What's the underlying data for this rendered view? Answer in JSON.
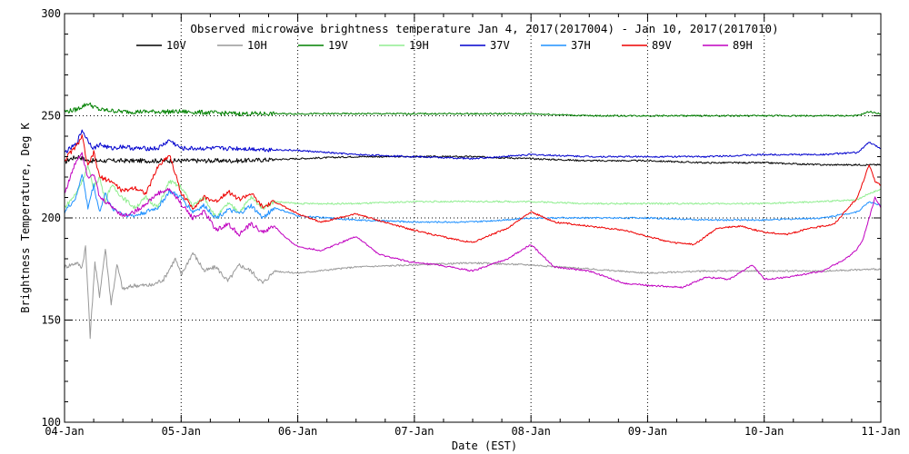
{
  "chart_data": {
    "type": "line",
    "title": "Observed microwave brightness temperature Jan  4, 2017(2017004) - Jan 10, 2017(2017010)",
    "xlabel": "Date (EST)",
    "ylabel": "Brightness Temperature, Deg K",
    "ylim": [
      100,
      300
    ],
    "xlim": [
      0,
      7
    ],
    "grid": true,
    "yticks": [
      100,
      150,
      200,
      250,
      300
    ],
    "xtick_labels": [
      "04-Jan",
      "05-Jan",
      "06-Jan",
      "07-Jan",
      "08-Jan",
      "09-Jan",
      "10-Jan",
      "11-Jan"
    ],
    "legend_position": "top",
    "series": [
      {
        "name": "10V",
        "color": "#000000",
        "x": [
          0,
          0.05,
          0.12,
          0.2,
          0.3,
          0.5,
          0.8,
          1.0,
          1.5,
          2.0,
          2.5,
          3.0,
          3.5,
          4.0,
          4.5,
          5.0,
          5.5,
          6.0,
          6.5,
          6.9,
          7.0
        ],
        "y": [
          227,
          229,
          230,
          228,
          228,
          228,
          228,
          228,
          228,
          229,
          230,
          230,
          230,
          229,
          228,
          228,
          227,
          227,
          226,
          226,
          226
        ]
      },
      {
        "name": "10H",
        "color": "#999999",
        "x": [
          0,
          0.05,
          0.1,
          0.15,
          0.18,
          0.22,
          0.26,
          0.3,
          0.35,
          0.4,
          0.45,
          0.5,
          0.6,
          0.75,
          0.85,
          0.95,
          1.0,
          1.1,
          1.2,
          1.3,
          1.4,
          1.5,
          1.6,
          1.7,
          1.8,
          2.0,
          2.5,
          3.0,
          3.5,
          4.0,
          4.5,
          5.0,
          5.5,
          6.0,
          6.5,
          7.0
        ],
        "y": [
          176,
          177,
          178,
          176,
          186,
          142,
          178,
          162,
          185,
          158,
          177,
          165,
          167,
          167,
          170,
          180,
          172,
          183,
          174,
          176,
          169,
          177,
          174,
          168,
          174,
          173,
          176,
          177,
          178,
          177,
          175,
          173,
          174,
          174,
          174,
          175
        ]
      },
      {
        "name": "19V",
        "color": "#008000",
        "x": [
          0,
          0.1,
          0.2,
          0.3,
          0.5,
          1.0,
          1.5,
          2.0,
          2.5,
          3.0,
          3.5,
          4.0,
          4.5,
          5.0,
          5.5,
          6.0,
          6.5,
          6.8,
          6.9,
          7.0
        ],
        "y": [
          252,
          253,
          256,
          253,
          252,
          252,
          251,
          251,
          251,
          251,
          251,
          251,
          250,
          250,
          250,
          250,
          250,
          250,
          252,
          251
        ]
      },
      {
        "name": "19H",
        "color": "#90ee90",
        "x": [
          0,
          0.1,
          0.15,
          0.2,
          0.25,
          0.3,
          0.35,
          0.4,
          0.5,
          0.6,
          0.7,
          0.8,
          0.9,
          1.0,
          1.1,
          1.2,
          1.3,
          1.4,
          1.5,
          1.6,
          1.7,
          1.8,
          2.0,
          2.5,
          3.0,
          3.5,
          4.0,
          4.5,
          5.0,
          5.5,
          6.0,
          6.5,
          6.8,
          6.9,
          7.0
        ],
        "y": [
          205,
          212,
          218,
          225,
          215,
          220,
          208,
          216,
          210,
          205,
          210,
          205,
          218,
          215,
          206,
          210,
          200,
          207,
          203,
          210,
          205,
          208,
          207,
          207,
          208,
          208,
          208,
          207,
          207,
          207,
          207,
          208,
          209,
          212,
          214
        ]
      },
      {
        "name": "37V",
        "color": "#0000cd",
        "x": [
          0,
          0.1,
          0.15,
          0.2,
          0.25,
          0.3,
          0.4,
          0.5,
          0.6,
          0.8,
          0.9,
          1.0,
          1.2,
          1.5,
          2.0,
          2.5,
          3.0,
          3.5,
          4.0,
          4.5,
          5.0,
          5.5,
          6.0,
          6.5,
          6.8,
          6.9,
          7.0
        ],
        "y": [
          232,
          236,
          243,
          238,
          234,
          236,
          234,
          235,
          234,
          234,
          238,
          234,
          234,
          234,
          233,
          231,
          230,
          229,
          231,
          230,
          230,
          230,
          231,
          231,
          232,
          237,
          234
        ]
      },
      {
        "name": "37H",
        "color": "#1e90ff",
        "x": [
          0,
          0.1,
          0.15,
          0.2,
          0.25,
          0.3,
          0.35,
          0.4,
          0.5,
          0.6,
          0.7,
          0.8,
          0.9,
          1.0,
          1.1,
          1.2,
          1.3,
          1.4,
          1.5,
          1.6,
          1.7,
          1.8,
          2.0,
          2.5,
          3.0,
          3.5,
          4.0,
          4.5,
          5.0,
          5.5,
          6.0,
          6.5,
          6.8,
          6.9,
          7.0
        ],
        "y": [
          203,
          210,
          222,
          205,
          216,
          203,
          212,
          205,
          202,
          201,
          203,
          205,
          213,
          210,
          203,
          206,
          200,
          204,
          202,
          206,
          200,
          205,
          201,
          199,
          198,
          198,
          200,
          200,
          200,
          199,
          199,
          200,
          203,
          208,
          206
        ]
      },
      {
        "name": "89V",
        "color": "#ee0000",
        "x": [
          0,
          0.05,
          0.1,
          0.15,
          0.2,
          0.25,
          0.3,
          0.4,
          0.5,
          0.6,
          0.7,
          0.8,
          0.9,
          1.0,
          1.1,
          1.2,
          1.3,
          1.4,
          1.5,
          1.6,
          1.7,
          1.8,
          2.0,
          2.2,
          2.5,
          2.8,
          3.0,
          3.3,
          3.5,
          3.8,
          4.0,
          4.2,
          4.5,
          4.8,
          5.0,
          5.2,
          5.4,
          5.6,
          5.8,
          6.0,
          6.2,
          6.4,
          6.6,
          6.8,
          6.9,
          6.95,
          7.0
        ],
        "y": [
          228,
          232,
          235,
          240,
          225,
          232,
          220,
          218,
          213,
          215,
          212,
          225,
          231,
          212,
          205,
          210,
          208,
          213,
          209,
          212,
          205,
          208,
          202,
          198,
          202,
          197,
          194,
          190,
          188,
          195,
          203,
          198,
          196,
          194,
          191,
          188,
          187,
          195,
          196,
          193,
          192,
          195,
          197,
          210,
          226,
          218,
          216
        ]
      },
      {
        "name": "89H",
        "color": "#c000c0",
        "x": [
          0,
          0.05,
          0.1,
          0.15,
          0.2,
          0.25,
          0.3,
          0.4,
          0.5,
          0.6,
          0.7,
          0.8,
          0.9,
          1.0,
          1.1,
          1.2,
          1.3,
          1.4,
          1.5,
          1.6,
          1.7,
          1.8,
          1.9,
          2.0,
          2.2,
          2.5,
          2.7,
          3.0,
          3.2,
          3.5,
          3.8,
          4.0,
          4.2,
          4.5,
          4.8,
          5.0,
          5.3,
          5.5,
          5.7,
          5.9,
          6.0,
          6.2,
          6.5,
          6.7,
          6.8,
          6.85,
          6.9,
          6.95,
          7.0
        ],
        "y": [
          212,
          220,
          228,
          232,
          220,
          222,
          210,
          206,
          201,
          203,
          207,
          212,
          214,
          207,
          200,
          203,
          194,
          197,
          192,
          197,
          193,
          196,
          190,
          186,
          184,
          191,
          182,
          178,
          177,
          174,
          180,
          187,
          176,
          174,
          168,
          167,
          166,
          171,
          170,
          177,
          170,
          171,
          174,
          180,
          185,
          190,
          200,
          210,
          205
        ]
      }
    ]
  }
}
